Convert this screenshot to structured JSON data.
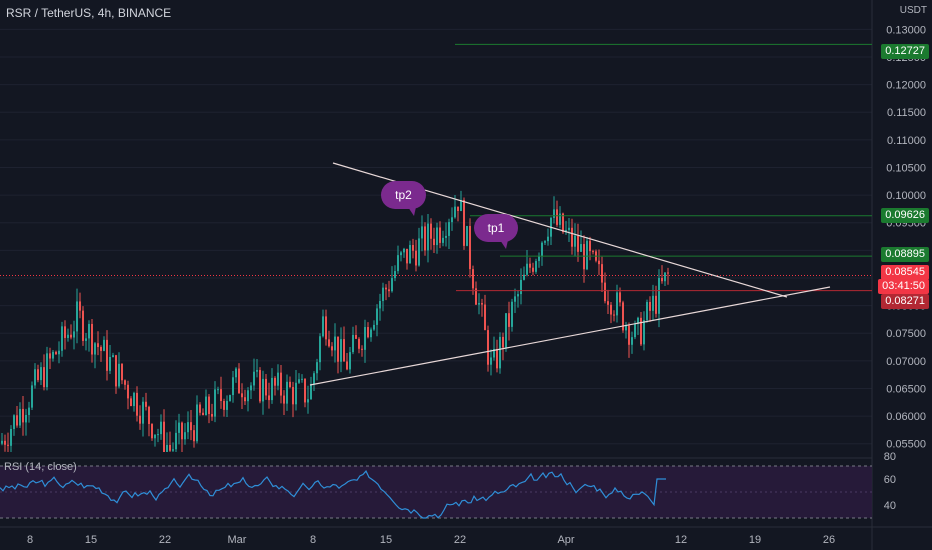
{
  "header": {
    "title": "RSR / TetherUS, 4h, BINANCE"
  },
  "currency": "USDT",
  "price_axis": [
    "0.13000",
    "0.12500",
    "0.12000",
    "0.11500",
    "0.11000",
    "0.10500",
    "0.10000",
    "0.09500",
    "0.09000",
    "0.08500",
    "0.08000",
    "0.07500",
    "0.07000",
    "0.06500",
    "0.06000",
    "0.05500"
  ],
  "price_tags": [
    {
      "label": "0.12727",
      "color": "#1b7a2f"
    },
    {
      "label": "0.09626",
      "color": "#1b7a2f"
    },
    {
      "label": "0.08895",
      "color": "#1b7a2f"
    },
    {
      "label": "0.08545",
      "color": "#f23645"
    },
    {
      "label": "03:41:50",
      "color": "#f23645"
    },
    {
      "label": "0.08271",
      "color": "#b22833"
    }
  ],
  "annotations": {
    "tp2": "tp2",
    "tp1": "tp1"
  },
  "rsi": {
    "label": "RSI (14, close)",
    "axis": [
      "80",
      "60",
      "40"
    ]
  },
  "time_axis": [
    "8",
    "15",
    "22",
    "Mar",
    "8",
    "15",
    "22",
    "Apr",
    "12",
    "19",
    "26"
  ],
  "chart_data": {
    "type": "candlestick",
    "symbol": "RSR / TetherUS",
    "interval": "4h",
    "exchange": "BINANCE",
    "ylim": [
      0.0535,
      0.1335
    ],
    "last_price": 0.08545,
    "levels": [
      0.12727,
      0.09626,
      0.08895,
      0.08271
    ],
    "key_points": [
      {
        "label": "low",
        "x": "8",
        "y": 0.055
      },
      {
        "label": "high",
        "x": "12",
        "y": 0.078
      },
      {
        "label": "low",
        "x": "22",
        "y": 0.054
      },
      {
        "label": "high",
        "x": "Mar",
        "y": 0.069
      },
      {
        "label": "low",
        "x": "8",
        "y": 0.064
      },
      {
        "label": "high",
        "x": "15",
        "y": 0.088
      },
      {
        "label": "high",
        "x": "22",
        "y": 0.0995
      },
      {
        "label": "low",
        "x": "22",
        "y": 0.067
      },
      {
        "label": "high",
        "x": "Apr",
        "y": 0.0975
      },
      {
        "label": "low",
        "x": "Apr",
        "y": 0.074
      },
      {
        "label": "last",
        "x": "Apr",
        "y": 0.0854
      }
    ],
    "rsi": {
      "ylim": [
        30,
        80
      ],
      "bands": [
        70,
        30
      ],
      "last": 60
    }
  }
}
